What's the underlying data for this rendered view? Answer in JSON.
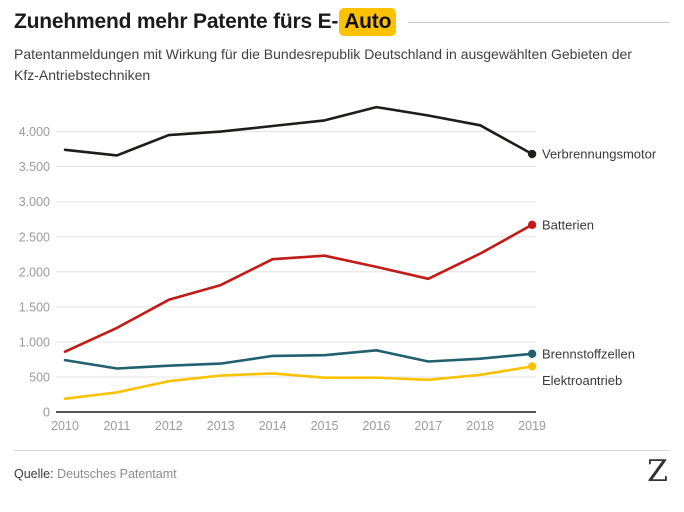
{
  "header": {
    "title_prefix": "Zunehmend mehr Patente fürs E-",
    "title_highlight": "Auto",
    "subtitle": "Patentanmeldungen mit Wirkung für die Bundesrepublik Deutschland in ausgewählten Gebieten der Kfz-Antriebstechniken"
  },
  "chart_data": {
    "type": "line",
    "x": [
      2010,
      2011,
      2012,
      2013,
      2014,
      2015,
      2016,
      2017,
      2018,
      2019
    ],
    "series": [
      {
        "name": "Verbrennungsmotor",
        "color": "#1d1d1b",
        "label_dy": 0,
        "values": [
          3740,
          3660,
          3950,
          4000,
          4080,
          4160,
          4350,
          4230,
          4090,
          3680
        ]
      },
      {
        "name": "Batterien",
        "color": "#c21b17",
        "label_dy": 0,
        "values": [
          860,
          1200,
          1600,
          1810,
          2180,
          2230,
          2070,
          1900,
          2260,
          2670
        ]
      },
      {
        "name": "Brennstoffzellen",
        "color": "#21606e",
        "label_dy": 0,
        "values": [
          740,
          620,
          660,
          690,
          800,
          810,
          880,
          720,
          760,
          830
        ]
      },
      {
        "name": "Elektroantrieb",
        "color": "#fcc200",
        "label_dy": 14,
        "values": [
          190,
          280,
          440,
          520,
          550,
          490,
          490,
          460,
          530,
          650
        ]
      }
    ],
    "title": "Zunehmend mehr Patente fürs E-Auto",
    "xlabel": "",
    "ylabel": "",
    "ylim": [
      0,
      4500
    ],
    "yticks": [
      0,
      500,
      1000,
      1500,
      2000,
      2500,
      3000,
      3500,
      4000
    ],
    "ytick_labels": [
      "0",
      "500",
      "1.000",
      "1.500",
      "2.000",
      "2.500",
      "3.000",
      "3.500",
      "4.000"
    ],
    "grid": true,
    "legend_position": "right-of-line-ends"
  },
  "footer": {
    "source_label": "Quelle:",
    "source": "Deutsches Patentamt",
    "logo": "Z"
  },
  "colors": {
    "highlight": "#fcc200",
    "grid": "#e3e3e3",
    "axis": "#1d1d1b",
    "tick_text": "#9b9b9b",
    "series_label_text": "#3a3a3a"
  }
}
